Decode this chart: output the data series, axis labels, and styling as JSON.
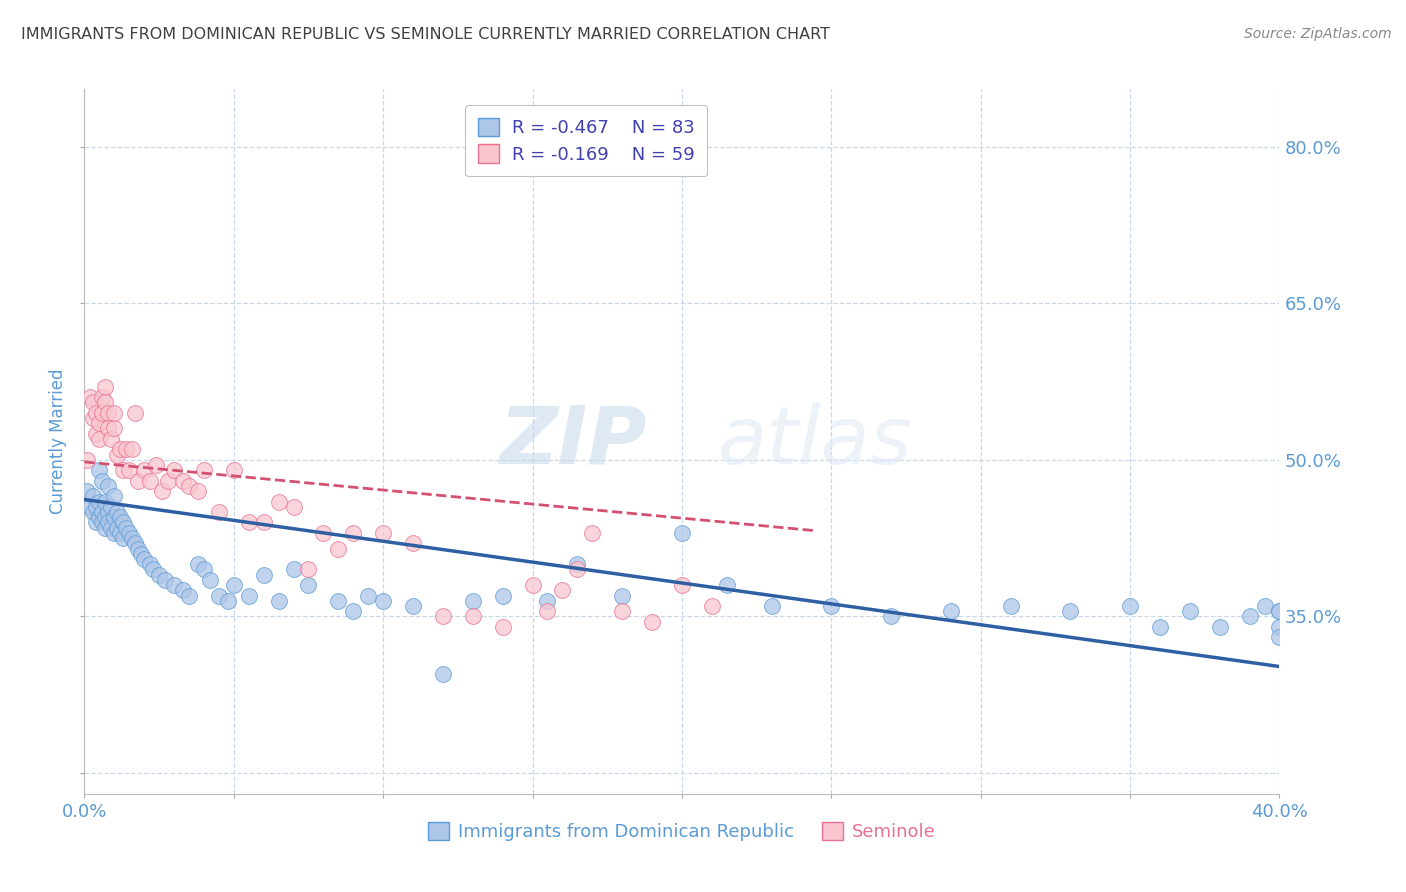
{
  "title": "IMMIGRANTS FROM DOMINICAN REPUBLIC VS SEMINOLE CURRENTLY MARRIED CORRELATION CHART",
  "source": "Source: ZipAtlas.com",
  "xlabel_blue": "Immigrants from Dominican Republic",
  "xlabel_pink": "Seminole",
  "ylabel": "Currently Married",
  "watermark_zip": "ZIP",
  "watermark_atlas": "atlas",
  "x_min": 0.0,
  "x_max": 0.4,
  "y_min": 0.18,
  "y_max": 0.855,
  "right_ytick_labels": [
    "80.0%",
    "65.0%",
    "50.0%",
    "35.0%"
  ],
  "right_ytick_values": [
    0.8,
    0.65,
    0.5,
    0.35
  ],
  "legend_blue_R": "-0.467",
  "legend_blue_N": "83",
  "legend_pink_R": "-0.169",
  "legend_pink_N": "59",
  "blue_fill_color": "#aec6e8",
  "blue_edge_color": "#5b9bd5",
  "pink_fill_color": "#f9c6d0",
  "pink_edge_color": "#e87090",
  "blue_line_color": "#2e5fa3",
  "pink_line_color": "#d45070",
  "axis_label_color": "#5b9bd5",
  "title_color": "#404040",
  "grid_color": "#c8d8e8",
  "blue_scatter_x": [
    0.001,
    0.002,
    0.003,
    0.003,
    0.004,
    0.004,
    0.005,
    0.005,
    0.005,
    0.006,
    0.006,
    0.006,
    0.007,
    0.007,
    0.007,
    0.008,
    0.008,
    0.008,
    0.009,
    0.009,
    0.01,
    0.01,
    0.01,
    0.011,
    0.011,
    0.012,
    0.012,
    0.013,
    0.013,
    0.014,
    0.015,
    0.016,
    0.017,
    0.018,
    0.019,
    0.02,
    0.022,
    0.023,
    0.025,
    0.027,
    0.03,
    0.033,
    0.035,
    0.038,
    0.04,
    0.042,
    0.045,
    0.048,
    0.05,
    0.055,
    0.06,
    0.065,
    0.07,
    0.075,
    0.085,
    0.09,
    0.095,
    0.1,
    0.11,
    0.12,
    0.13,
    0.14,
    0.155,
    0.165,
    0.18,
    0.2,
    0.215,
    0.23,
    0.25,
    0.27,
    0.29,
    0.31,
    0.33,
    0.35,
    0.36,
    0.37,
    0.38,
    0.39,
    0.395,
    0.4,
    0.4,
    0.4,
    0.4
  ],
  "blue_scatter_y": [
    0.47,
    0.455,
    0.465,
    0.45,
    0.455,
    0.44,
    0.49,
    0.46,
    0.445,
    0.48,
    0.45,
    0.44,
    0.46,
    0.445,
    0.435,
    0.475,
    0.45,
    0.44,
    0.455,
    0.435,
    0.465,
    0.445,
    0.43,
    0.45,
    0.435,
    0.445,
    0.43,
    0.44,
    0.425,
    0.435,
    0.43,
    0.425,
    0.42,
    0.415,
    0.41,
    0.405,
    0.4,
    0.395,
    0.39,
    0.385,
    0.38,
    0.375,
    0.37,
    0.4,
    0.395,
    0.385,
    0.37,
    0.365,
    0.38,
    0.37,
    0.39,
    0.365,
    0.395,
    0.38,
    0.365,
    0.355,
    0.37,
    0.365,
    0.36,
    0.295,
    0.365,
    0.37,
    0.365,
    0.4,
    0.37,
    0.43,
    0.38,
    0.36,
    0.36,
    0.35,
    0.355,
    0.36,
    0.355,
    0.36,
    0.34,
    0.355,
    0.34,
    0.35,
    0.36,
    0.355,
    0.355,
    0.34,
    0.33
  ],
  "pink_scatter_x": [
    0.001,
    0.002,
    0.003,
    0.003,
    0.004,
    0.004,
    0.005,
    0.005,
    0.006,
    0.006,
    0.007,
    0.007,
    0.008,
    0.008,
    0.009,
    0.01,
    0.01,
    0.011,
    0.012,
    0.013,
    0.014,
    0.015,
    0.016,
    0.017,
    0.018,
    0.02,
    0.022,
    0.024,
    0.026,
    0.028,
    0.03,
    0.033,
    0.035,
    0.038,
    0.04,
    0.045,
    0.05,
    0.055,
    0.06,
    0.065,
    0.07,
    0.075,
    0.08,
    0.085,
    0.09,
    0.1,
    0.11,
    0.12,
    0.13,
    0.14,
    0.15,
    0.155,
    0.16,
    0.165,
    0.17,
    0.18,
    0.19,
    0.2,
    0.21
  ],
  "pink_scatter_y": [
    0.5,
    0.56,
    0.555,
    0.54,
    0.545,
    0.525,
    0.535,
    0.52,
    0.56,
    0.545,
    0.57,
    0.555,
    0.545,
    0.53,
    0.52,
    0.53,
    0.545,
    0.505,
    0.51,
    0.49,
    0.51,
    0.49,
    0.51,
    0.545,
    0.48,
    0.49,
    0.48,
    0.495,
    0.47,
    0.48,
    0.49,
    0.48,
    0.475,
    0.47,
    0.49,
    0.45,
    0.49,
    0.44,
    0.44,
    0.46,
    0.455,
    0.395,
    0.43,
    0.415,
    0.43,
    0.43,
    0.42,
    0.35,
    0.35,
    0.34,
    0.38,
    0.355,
    0.375,
    0.395,
    0.43,
    0.355,
    0.345,
    0.38,
    0.36
  ],
  "blue_line_x0": 0.0,
  "blue_line_x1": 0.4,
  "blue_line_y0": 0.462,
  "blue_line_y1": 0.302,
  "pink_line_x0": 0.0,
  "pink_line_x1": 0.245,
  "pink_line_y0": 0.498,
  "pink_line_y1": 0.432,
  "background_color": "#ffffff"
}
